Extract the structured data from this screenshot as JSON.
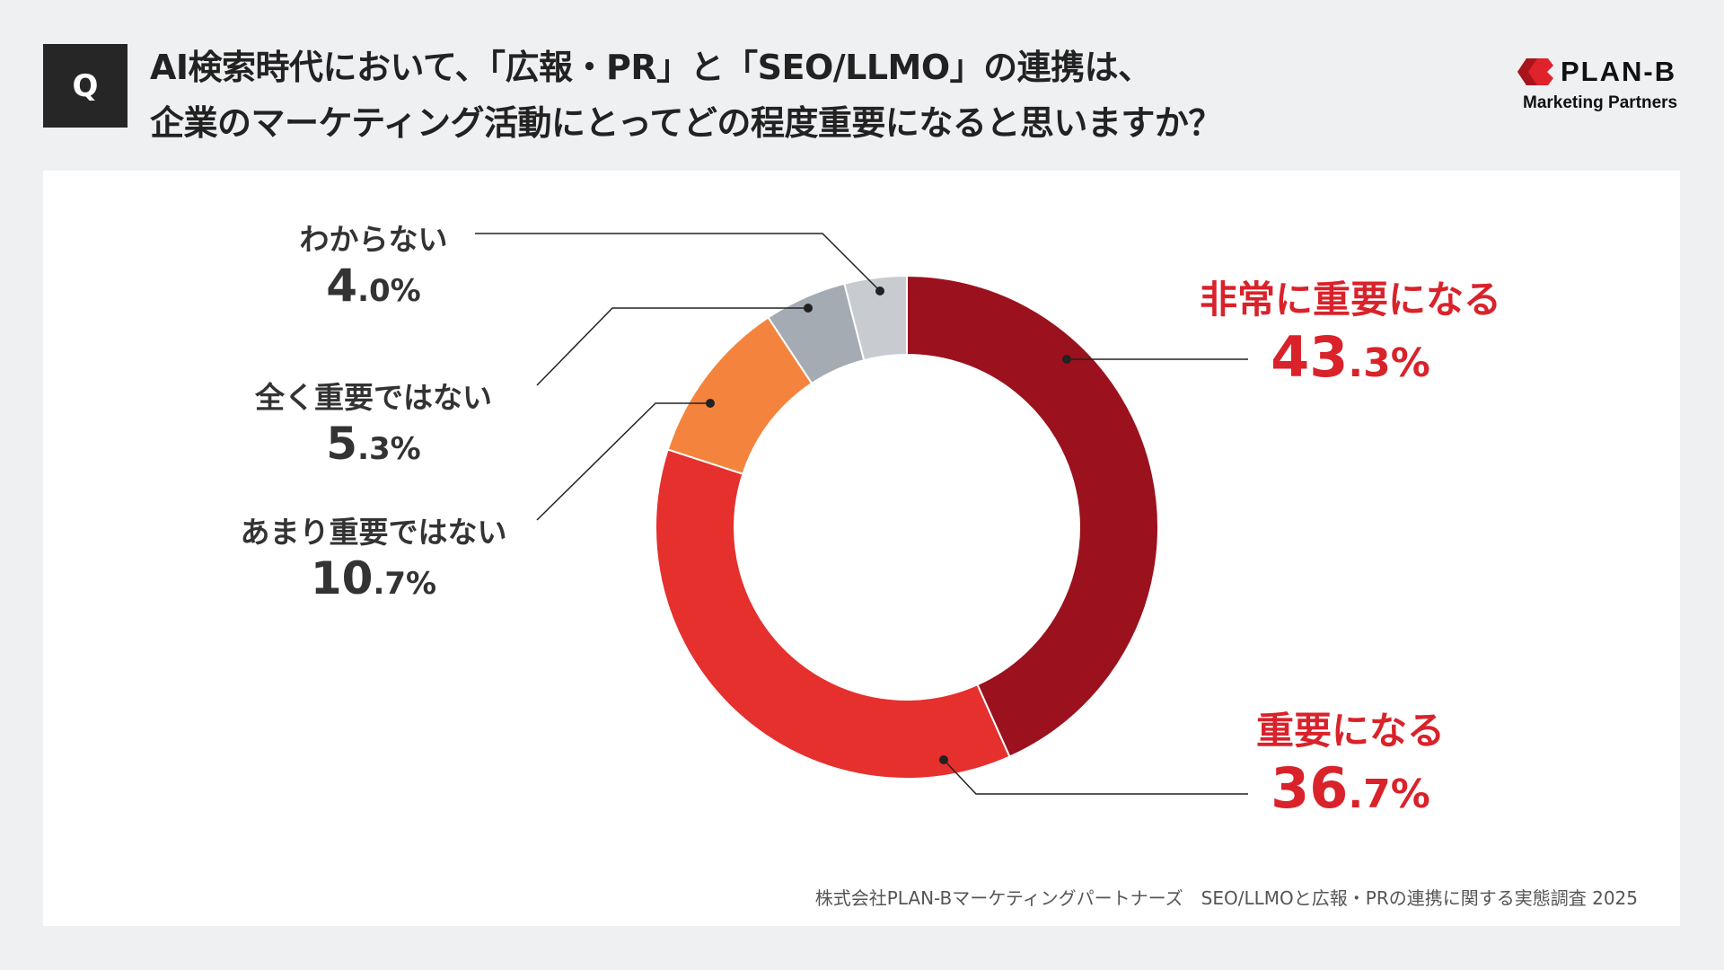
{
  "question_badge": "Q",
  "title": {
    "line1": "AI検索時代において、「広報・PR」と「SEO/LLMO」の連携は、",
    "line2": "企業のマーケティング活動にとってどの程度重要になると思いますか？"
  },
  "logo": {
    "name": "PLAN-B",
    "sub": "Marketing Partners",
    "color": "#E0222B"
  },
  "source": "株式会社PLAN-Bマーケティングパートナーズ　SEO/LLMOと広報・PRの連携に関する実態調査 2025",
  "chart_data": {
    "type": "pie",
    "donut": true,
    "unit": "%",
    "start": "top, clockwise",
    "slices": [
      {
        "label": "非常に重要になる",
        "value": 43.3,
        "color": "#9B111E",
        "label_color": "#D9222A"
      },
      {
        "label": "重要になる",
        "value": 36.7,
        "color": "#E5302D",
        "label_color": "#D9222A"
      },
      {
        "label": "あまり重要ではない",
        "value": 10.7,
        "color": "#F4843D",
        "label_color": "#333333"
      },
      {
        "label": "全く重要ではない",
        "value": 5.3,
        "color": "#A4ABB3",
        "label_color": "#333333"
      },
      {
        "label": "わからない",
        "value": 4.0,
        "color": "#C8CCD1",
        "label_color": "#333333"
      }
    ]
  }
}
